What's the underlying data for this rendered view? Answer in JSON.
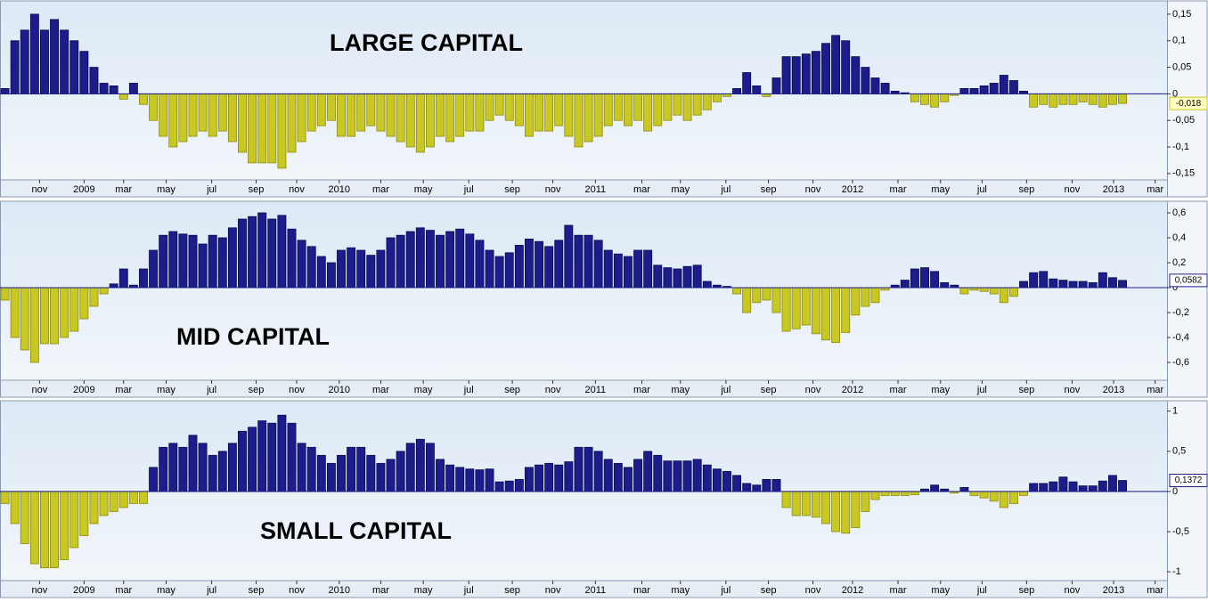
{
  "chart_data": [
    {
      "type": "bar",
      "title": "LARGE CAPITAL",
      "color": "#1c1c8c",
      "negative_color": "#c9c822",
      "values": [
        0.01,
        0.1,
        0.12,
        0.15,
        0.12,
        0.14,
        0.12,
        0.1,
        0.08,
        0.05,
        0.02,
        0.015,
        -0.01,
        0.02,
        -0.02,
        -0.05,
        -0.08,
        -0.1,
        -0.09,
        -0.08,
        -0.07,
        -0.08,
        -0.07,
        -0.09,
        -0.11,
        -0.13,
        -0.13,
        -0.13,
        -0.14,
        -0.11,
        -0.09,
        -0.07,
        -0.06,
        -0.05,
        -0.08,
        -0.08,
        -0.07,
        -0.06,
        -0.07,
        -0.08,
        -0.09,
        -0.1,
        -0.11,
        -0.1,
        -0.08,
        -0.09,
        -0.08,
        -0.07,
        -0.07,
        -0.05,
        -0.04,
        -0.05,
        -0.06,
        -0.08,
        -0.07,
        -0.07,
        -0.06,
        -0.08,
        -0.1,
        -0.09,
        -0.08,
        -0.06,
        -0.05,
        -0.06,
        -0.05,
        -0.07,
        -0.06,
        -0.05,
        -0.04,
        -0.05,
        -0.04,
        -0.03,
        -0.015,
        -0.005,
        0.01,
        0.04,
        0.015,
        -0.005,
        0.03,
        0.07,
        0.07,
        0.075,
        0.08,
        0.095,
        0.11,
        0.1,
        0.07,
        0.05,
        0.03,
        0.02,
        0.005,
        0.002,
        -0.015,
        -0.02,
        -0.025,
        -0.015,
        -0.003,
        0.01,
        0.01,
        0.015,
        0.02,
        0.035,
        0.025,
        0.005,
        -0.025,
        -0.02,
        -0.025,
        -0.02,
        -0.02,
        -0.015,
        -0.02,
        -0.025,
        -0.02,
        -0.018
      ],
      "last_label": "-0,018",
      "xlim": [
        0,
        118
      ],
      "xticks": [
        {
          "value": 4,
          "label": "nov"
        },
        {
          "value": 8.5,
          "label": "2009"
        },
        {
          "value": 12.5,
          "label": "mar"
        },
        {
          "value": 16.8,
          "label": "may"
        },
        {
          "value": 21.4,
          "label": "jul"
        },
        {
          "value": 25.9,
          "label": "sep"
        },
        {
          "value": 30,
          "label": "nov"
        },
        {
          "value": 34.3,
          "label": "2010"
        },
        {
          "value": 38.5,
          "label": "mar"
        },
        {
          "value": 42.8,
          "label": "may"
        },
        {
          "value": 47.4,
          "label": "jul"
        },
        {
          "value": 51.8,
          "label": "sep"
        },
        {
          "value": 55.9,
          "label": "nov"
        },
        {
          "value": 60.2,
          "label": "2011"
        },
        {
          "value": 64.9,
          "label": "mar"
        },
        {
          "value": 68.8,
          "label": "may"
        },
        {
          "value": 73.4,
          "label": "jul"
        },
        {
          "value": 77.7,
          "label": "sep"
        },
        {
          "value": 82.2,
          "label": "nov"
        },
        {
          "value": 86.2,
          "label": "2012"
        },
        {
          "value": 90.8,
          "label": "mar"
        },
        {
          "value": 95.1,
          "label": "may"
        },
        {
          "value": 99.3,
          "label": "jul"
        },
        {
          "value": 103.8,
          "label": "sep"
        },
        {
          "value": 108.4,
          "label": "nov"
        },
        {
          "value": 112.6,
          "label": "2013"
        },
        {
          "value": 116.8,
          "label": "mar"
        }
      ],
      "ylim": [
        -0.162,
        0.175
      ],
      "yticks": [
        {
          "value": 0.15,
          "label": "0,15"
        },
        {
          "value": 0.1,
          "label": "0,1"
        },
        {
          "value": 0.05,
          "label": "0,05"
        },
        0,
        {
          "value": -0.05,
          "label": "-0,05"
        },
        {
          "value": -0.1,
          "label": "-0,1"
        },
        {
          "value": -0.15,
          "label": "-0,15"
        }
      ]
    },
    {
      "type": "bar",
      "title": "MID CAPITAL",
      "color": "#1c1c8c",
      "negative_color": "#c9c822",
      "values": [
        -0.1,
        -0.4,
        -0.5,
        -0.6,
        -0.45,
        -0.45,
        -0.4,
        -0.35,
        -0.25,
        -0.15,
        -0.05,
        0.03,
        0.15,
        0.02,
        0.15,
        0.3,
        0.42,
        0.45,
        0.43,
        0.42,
        0.35,
        0.42,
        0.4,
        0.48,
        0.55,
        0.57,
        0.6,
        0.55,
        0.58,
        0.47,
        0.38,
        0.33,
        0.25,
        0.2,
        0.3,
        0.32,
        0.3,
        0.26,
        0.3,
        0.4,
        0.42,
        0.45,
        0.48,
        0.46,
        0.42,
        0.45,
        0.47,
        0.43,
        0.38,
        0.3,
        0.25,
        0.28,
        0.34,
        0.39,
        0.37,
        0.33,
        0.38,
        0.5,
        0.42,
        0.42,
        0.38,
        0.3,
        0.27,
        0.25,
        0.3,
        0.3,
        0.18,
        0.16,
        0.15,
        0.17,
        0.18,
        0.05,
        0.02,
        0.01,
        -0.05,
        -0.2,
        -0.12,
        -0.1,
        -0.2,
        -0.35,
        -0.33,
        -0.3,
        -0.37,
        -0.42,
        -0.44,
        -0.36,
        -0.22,
        -0.15,
        -0.12,
        -0.02,
        0.02,
        0.06,
        0.15,
        0.16,
        0.13,
        0.04,
        0.02,
        -0.05,
        -0.02,
        -0.03,
        -0.05,
        -0.12,
        -0.07,
        0.05,
        0.12,
        0.13,
        0.07,
        0.06,
        0.05,
        0.05,
        0.04,
        0.12,
        0.08,
        0.0582
      ],
      "last_label": "0,0582",
      "xlim": [
        0,
        118
      ],
      "xticks": [
        {
          "value": 4,
          "label": "nov"
        },
        {
          "value": 8.5,
          "label": "2009"
        },
        {
          "value": 12.5,
          "label": "mar"
        },
        {
          "value": 16.8,
          "label": "may"
        },
        {
          "value": 21.4,
          "label": "jul"
        },
        {
          "value": 25.9,
          "label": "sep"
        },
        {
          "value": 30,
          "label": "nov"
        },
        {
          "value": 34.3,
          "label": "2010"
        },
        {
          "value": 38.5,
          "label": "mar"
        },
        {
          "value": 42.8,
          "label": "may"
        },
        {
          "value": 47.4,
          "label": "jul"
        },
        {
          "value": 51.8,
          "label": "sep"
        },
        {
          "value": 55.9,
          "label": "nov"
        },
        {
          "value": 60.2,
          "label": "2011"
        },
        {
          "value": 64.9,
          "label": "mar"
        },
        {
          "value": 68.8,
          "label": "may"
        },
        {
          "value": 73.4,
          "label": "jul"
        },
        {
          "value": 77.7,
          "label": "sep"
        },
        {
          "value": 82.2,
          "label": "nov"
        },
        {
          "value": 86.2,
          "label": "2012"
        },
        {
          "value": 90.8,
          "label": "mar"
        },
        {
          "value": 95.1,
          "label": "may"
        },
        {
          "value": 99.3,
          "label": "jul"
        },
        {
          "value": 103.8,
          "label": "sep"
        },
        {
          "value": 108.4,
          "label": "nov"
        },
        {
          "value": 112.6,
          "label": "2013"
        },
        {
          "value": 116.8,
          "label": "mar"
        }
      ],
      "ylim": [
        -0.743,
        0.693
      ],
      "yticks": [
        {
          "value": 0.6,
          "label": "0,6"
        },
        {
          "value": 0.4,
          "label": "0,4"
        },
        {
          "value": 0.2,
          "label": "0,2"
        },
        0,
        {
          "value": -0.2,
          "label": "-0,2"
        },
        {
          "value": -0.4,
          "label": "-0,4"
        },
        {
          "value": -0.6,
          "label": "-0,6"
        }
      ]
    },
    {
      "type": "bar",
      "title": "SMALL CAPITAL",
      "color": "#1c1c8c",
      "negative_color": "#c9c822",
      "values": [
        -0.15,
        -0.4,
        -0.65,
        -0.9,
        -0.95,
        -0.95,
        -0.85,
        -0.7,
        -0.55,
        -0.4,
        -0.3,
        -0.25,
        -0.2,
        -0.15,
        -0.15,
        0.3,
        0.55,
        0.6,
        0.55,
        0.7,
        0.6,
        0.45,
        0.5,
        0.6,
        0.75,
        0.8,
        0.88,
        0.85,
        0.95,
        0.85,
        0.6,
        0.55,
        0.45,
        0.35,
        0.45,
        0.55,
        0.55,
        0.45,
        0.35,
        0.4,
        0.5,
        0.6,
        0.65,
        0.6,
        0.4,
        0.33,
        0.3,
        0.28,
        0.27,
        0.28,
        0.12,
        0.13,
        0.15,
        0.3,
        0.33,
        0.35,
        0.33,
        0.37,
        0.55,
        0.55,
        0.5,
        0.4,
        0.35,
        0.3,
        0.4,
        0.5,
        0.45,
        0.38,
        0.38,
        0.38,
        0.4,
        0.33,
        0.28,
        0.25,
        0.2,
        0.1,
        0.08,
        0.15,
        0.15,
        -0.2,
        -0.3,
        -0.3,
        -0.32,
        -0.4,
        -0.5,
        -0.52,
        -0.45,
        -0.25,
        -0.1,
        -0.05,
        -0.05,
        -0.05,
        -0.04,
        0.03,
        0.08,
        0.03,
        -0.02,
        0.05,
        -0.05,
        -0.08,
        -0.12,
        -0.2,
        -0.15,
        -0.05,
        0.1,
        0.1,
        0.12,
        0.18,
        0.12,
        0.07,
        0.07,
        0.13,
        0.2,
        0.1372
      ],
      "last_label": "0,1372",
      "xlim": [
        0,
        118
      ],
      "xticks": [
        {
          "value": 4,
          "label": "nov"
        },
        {
          "value": 8.5,
          "label": "2009"
        },
        {
          "value": 12.5,
          "label": "mar"
        },
        {
          "value": 16.8,
          "label": "may"
        },
        {
          "value": 21.4,
          "label": "jul"
        },
        {
          "value": 25.9,
          "label": "sep"
        },
        {
          "value": 30,
          "label": "nov"
        },
        {
          "value": 34.3,
          "label": "2010"
        },
        {
          "value": 38.5,
          "label": "mar"
        },
        {
          "value": 42.8,
          "label": "may"
        },
        {
          "value": 47.4,
          "label": "jul"
        },
        {
          "value": 51.8,
          "label": "sep"
        },
        {
          "value": 55.9,
          "label": "nov"
        },
        {
          "value": 60.2,
          "label": "2011"
        },
        {
          "value": 64.9,
          "label": "mar"
        },
        {
          "value": 68.8,
          "label": "may"
        },
        {
          "value": 73.4,
          "label": "jul"
        },
        {
          "value": 77.7,
          "label": "sep"
        },
        {
          "value": 82.2,
          "label": "nov"
        },
        {
          "value": 86.2,
          "label": "2012"
        },
        {
          "value": 90.8,
          "label": "mar"
        },
        {
          "value": 95.1,
          "label": "may"
        },
        {
          "value": 99.3,
          "label": "jul"
        },
        {
          "value": 103.8,
          "label": "sep"
        },
        {
          "value": 108.4,
          "label": "nov"
        },
        {
          "value": 112.6,
          "label": "2013"
        },
        {
          "value": 116.8,
          "label": "mar"
        }
      ],
      "ylim": [
        -1.11,
        1.13
      ],
      "yticks": [
        1,
        {
          "value": 0.5,
          "label": "0,5"
        },
        0,
        {
          "value": -0.5,
          "label": "-0,5"
        },
        -1
      ]
    }
  ]
}
